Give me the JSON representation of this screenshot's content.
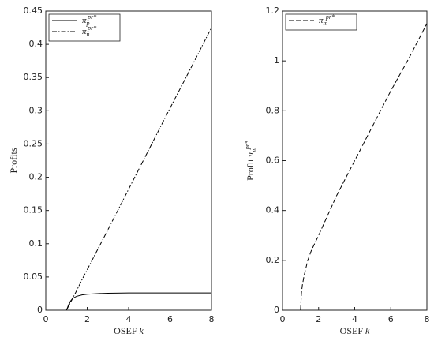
{
  "chart_data": [
    {
      "type": "line",
      "ylabel": "Profits",
      "xlabel": "OSEF k",
      "x": [
        1,
        1.1,
        1.2,
        1.3,
        1.5,
        1.75,
        2,
        2.5,
        3,
        4,
        5,
        6,
        7,
        8
      ],
      "series": [
        {
          "name": "π_p^{pr*}",
          "color": "#000000",
          "style": "solid",
          "values": [
            0,
            0.008,
            0.014,
            0.018,
            0.021,
            0.023,
            0.024,
            0.025,
            0.0255,
            0.026,
            0.026,
            0.026,
            0.026,
            0.026
          ]
        },
        {
          "name": "π_n^{pr*}",
          "color": "#000000",
          "style": "dashdot",
          "values": [
            0,
            0.006,
            0.012,
            0.018,
            0.03,
            0.046,
            0.061,
            0.091,
            0.121,
            0.182,
            0.243,
            0.304,
            0.364,
            0.425
          ]
        }
      ],
      "xlim": [
        0,
        8
      ],
      "xticks": [
        0,
        2,
        4,
        6,
        8
      ],
      "ylim": [
        0,
        0.45
      ],
      "yticks": [
        0,
        0.05,
        0.1,
        0.15,
        0.2,
        0.25,
        0.3,
        0.35,
        0.4,
        0.45
      ],
      "legend": "top-left",
      "grid": false
    },
    {
      "type": "line",
      "ylabel": "Profit π_m^{pr*}",
      "xlabel": "OSEF k",
      "x": [
        1,
        1.05,
        1.1,
        1.2,
        1.4,
        1.6,
        2,
        2.5,
        3,
        4,
        5,
        6,
        7,
        8
      ],
      "series": [
        {
          "name": "π_m^{pr*}",
          "color": "#000000",
          "style": "dashed",
          "values": [
            0,
            0.07,
            0.1,
            0.14,
            0.2,
            0.24,
            0.3,
            0.38,
            0.46,
            0.6,
            0.74,
            0.88,
            1.01,
            1.15
          ]
        }
      ],
      "xlim": [
        0,
        8
      ],
      "xticks": [
        0,
        2,
        4,
        6,
        8
      ],
      "ylim": [
        0,
        1.2
      ],
      "yticks": [
        0,
        0.2,
        0.4,
        0.6,
        0.8,
        1,
        1.2
      ],
      "legend": "top-left",
      "grid": false
    }
  ]
}
